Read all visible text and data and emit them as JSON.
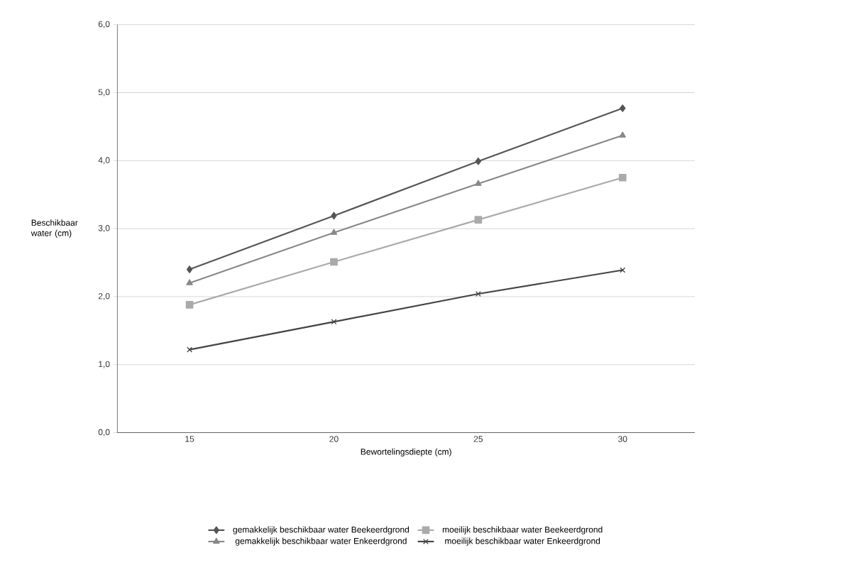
{
  "chart_data": {
    "type": "line",
    "xlabel": "Bewortelingsdiepte  (cm)",
    "ylabel": "Beschikbaar water (cm)",
    "categories": [
      "15",
      "20",
      "25",
      "30"
    ],
    "series": [
      {
        "name": "gemakkelijk beschikbaar water Beekeerdgrond",
        "color": "#555555",
        "marker": "diamond",
        "values": [
          2.4,
          3.19,
          3.99,
          4.77
        ]
      },
      {
        "name": "moeilijk beschikbaar water Beekeerdgrond",
        "color": "#aaaaaa",
        "marker": "square",
        "values": [
          1.88,
          2.51,
          3.13,
          3.75
        ]
      },
      {
        "name": "gemakkelijk beschikbaar water Enkeerdgrond",
        "color": "#888888",
        "marker": "triangle",
        "values": [
          2.2,
          2.94,
          3.66,
          4.37
        ]
      },
      {
        "name": "moeilijk beschikbaar water Enkeerdgrond",
        "color": "#444444",
        "marker": "cross",
        "values": [
          1.22,
          1.63,
          2.04,
          2.39
        ]
      }
    ],
    "ylim": [
      0,
      6
    ],
    "yticks": [
      {
        "value": 0,
        "label": "0,0"
      },
      {
        "value": 1,
        "label": "1,0"
      },
      {
        "value": 2,
        "label": "2,0"
      },
      {
        "value": 3,
        "label": "3,0"
      },
      {
        "value": 4,
        "label": "4,0"
      },
      {
        "value": 5,
        "label": "5,0"
      },
      {
        "value": 6,
        "label": "6,0"
      }
    ],
    "grid": "y",
    "legend": "bottom",
    "line_style": "solid"
  }
}
